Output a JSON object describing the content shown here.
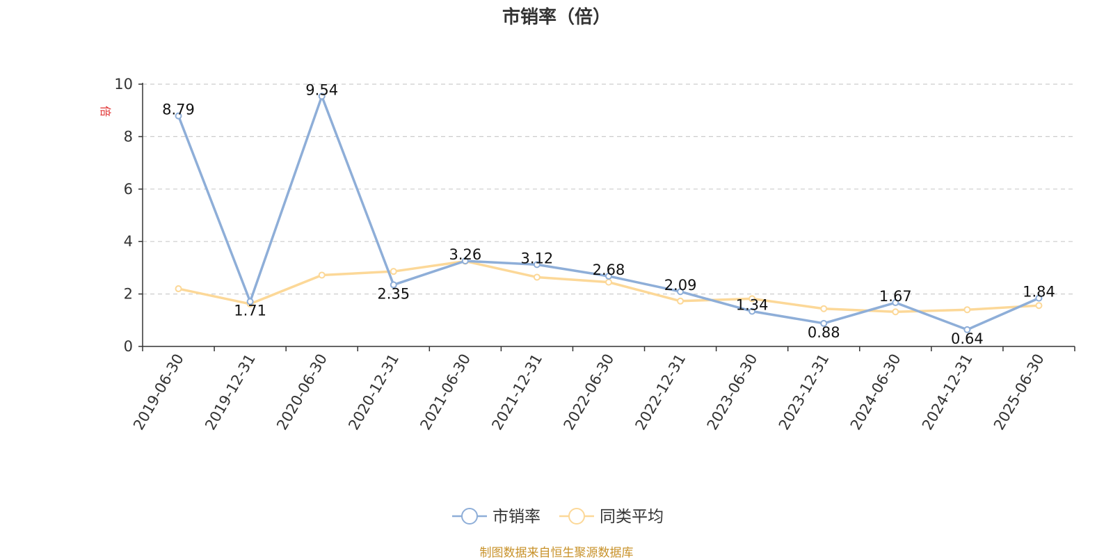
{
  "chart_data": {
    "type": "line",
    "title": "市销率（倍）",
    "ylabel": "倍",
    "ylim": [
      0,
      10
    ],
    "yticks": [
      0,
      2,
      4,
      6,
      8,
      10
    ],
    "grid": true,
    "legend_position": "bottom",
    "categories": [
      "2019-06-30",
      "2019-12-31",
      "2020-06-30",
      "2020-12-31",
      "2021-06-30",
      "2021-12-31",
      "2022-06-30",
      "2022-12-31",
      "2023-06-30",
      "2023-12-31",
      "2024-06-30",
      "2024-12-31",
      "2025-06-30"
    ],
    "series": [
      {
        "name": "市销率",
        "color": "#8eaed8",
        "values": [
          8.79,
          1.71,
          9.54,
          2.35,
          3.26,
          3.12,
          2.68,
          2.09,
          1.34,
          0.88,
          1.67,
          0.64,
          1.84
        ],
        "labels": [
          "8.79",
          "1.71",
          "9.54",
          "2.35",
          "3.26",
          "3.12",
          "2.68",
          "2.09",
          "1.34",
          "0.88",
          "1.67",
          "0.64",
          "1.84"
        ]
      },
      {
        "name": "同类平均",
        "color": "#fcd898",
        "values": [
          2.2,
          1.62,
          2.72,
          2.86,
          3.25,
          2.64,
          2.45,
          1.73,
          1.82,
          1.44,
          1.32,
          1.4,
          1.56
        ]
      }
    ]
  },
  "source": "制图数据来自恒生聚源数据库"
}
